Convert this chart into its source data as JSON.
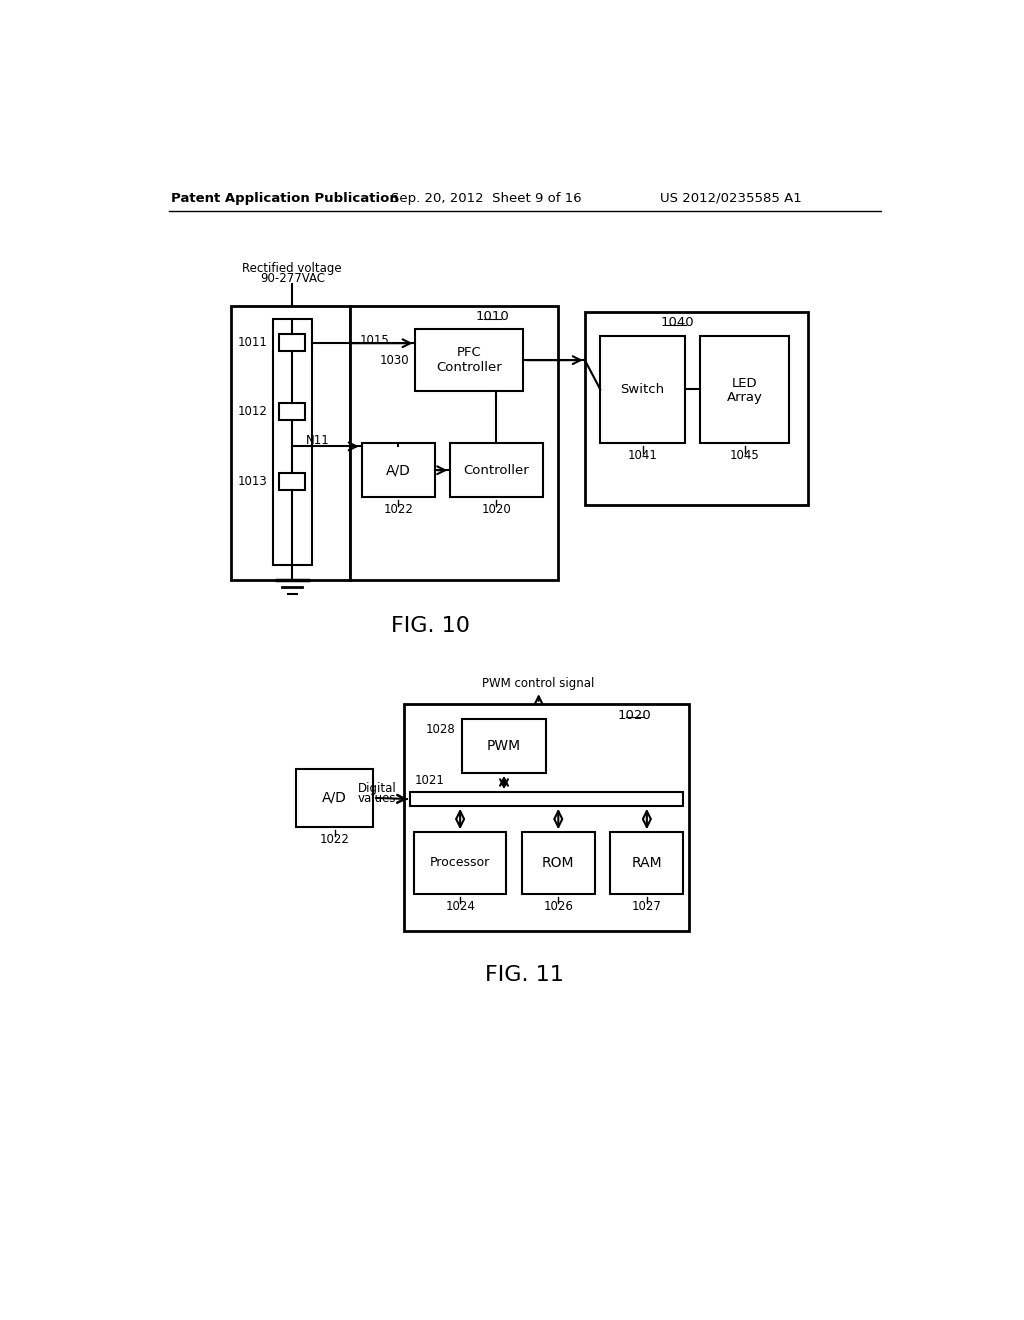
{
  "bg_color": "#ffffff",
  "header_left": "Patent Application Publication",
  "header_mid": "Sep. 20, 2012  Sheet 9 of 16",
  "header_right": "US 2012/0235585 A1",
  "fig10_label": "FIG. 10",
  "fig11_label": "FIG. 11",
  "line_color": "#000000",
  "text_color": "#000000"
}
